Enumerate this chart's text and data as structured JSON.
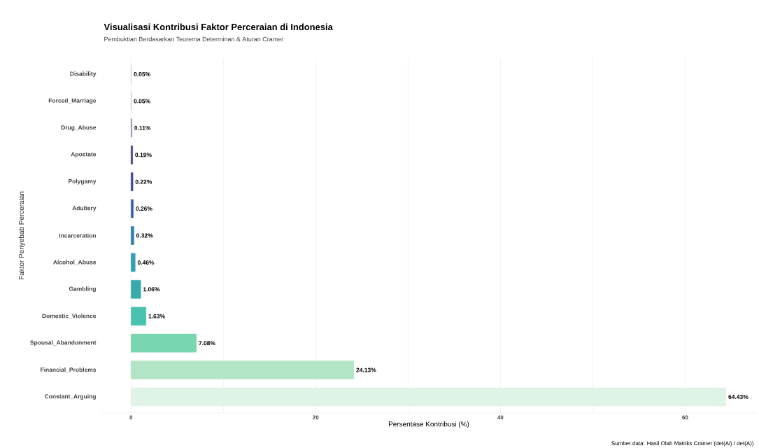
{
  "chart_data": {
    "type": "bar",
    "orientation": "horizontal",
    "title": "Visualisasi Kontribusi Faktor Perceraian di Indonesia",
    "subtitle": "Pembuktian Berdasarkan Teorema Determinan & Aturan Cramer",
    "xlabel": "Persentase Kontribusi (%)",
    "ylabel": "Faktor Penyebab Perceraian",
    "annotations": [
      "Sumber data: Hasil Olah Matriks Cramer (det(Ai) / det(A))"
    ],
    "categories": [
      "Disability",
      "Forced_Marriage",
      "Drug_Abuse",
      "Apostate",
      "Polygamy",
      "Adultery",
      "Incarceration",
      "Alcohol_Abuse",
      "Gambling",
      "Domestic_Violence",
      "Spousal_Abandonment",
      "Financial_Problems",
      "Constant_Arguing"
    ],
    "values": [
      0.05,
      0.05,
      0.11,
      0.19,
      0.22,
      0.26,
      0.32,
      0.46,
      1.06,
      1.63,
      7.08,
      24.13,
      64.43
    ],
    "value_labels": [
      "0.05%",
      "0.05%",
      "0.11%",
      "0.19%",
      "0.22%",
      "0.26%",
      "0.32%",
      "0.46%",
      "1.06%",
      "1.63%",
      "7.08%",
      "24.13%",
      "64.43%"
    ],
    "colors": [
      "#cfcfd4",
      "#c4c2cc",
      "#8e88ae",
      "#463f80",
      "#3e4892",
      "#3a5fa2",
      "#2f7fa8",
      "#33a0b2",
      "#38aaaa",
      "#48c2ae",
      "#78d6b0",
      "#b2e4c6",
      "#dff3e6"
    ],
    "xticks": [
      0,
      {
        "value": 10,
        "label": null
      },
      20,
      {
        "value": 30,
        "label": null
      },
      40,
      {
        "value": 50,
        "label": null
      },
      60
    ],
    "xlim": [
      -3.2,
      67.7
    ],
    "grid": "x"
  }
}
